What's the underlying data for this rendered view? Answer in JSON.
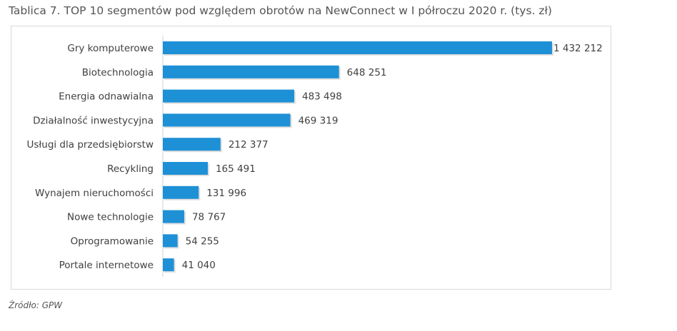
{
  "title": "Tablica 7. TOP 10 segmentów pod względem obrotów na NewConnect w I półroczu 2020 r. (tys. zł)",
  "source": "Źródło: GPW",
  "chart_data": {
    "type": "bar",
    "orientation": "horizontal",
    "title": "Tablica 7. TOP 10 segmentów pod względem obrotów na NewConnect w I półroczu 2020 r. (tys. zł)",
    "categories": [
      "Gry komputerowe",
      "Biotechnologia",
      "Energia odnawialna",
      "Działalność inwestycyjna",
      "Usługi dla przedsiębiorstw",
      "Recykling",
      "Wynajem nieruchomości",
      "Nowe technologie",
      "Oprogramowanie",
      "Portale internetowe"
    ],
    "values": [
      1432212,
      648251,
      483498,
      469319,
      212377,
      165491,
      131996,
      78767,
      54255,
      41040
    ],
    "value_labels": [
      "1 432 212",
      "648 251",
      "483 498",
      "469 319",
      "212 377",
      "165 491",
      "131 996",
      "78 767",
      "54 255",
      "41 040"
    ],
    "xlim": [
      0,
      1432212
    ],
    "grid": false,
    "legend": "none",
    "bar_color": "#1e90d6"
  }
}
